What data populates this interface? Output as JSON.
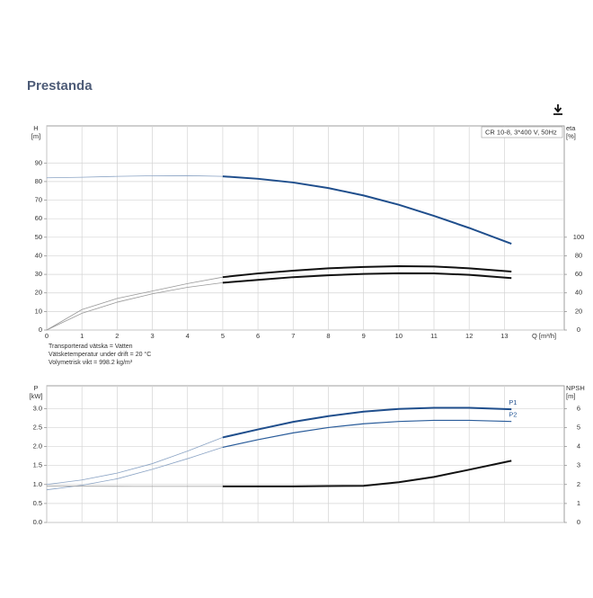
{
  "title": "Prestanda",
  "chart_data": [
    {
      "type": "line",
      "ylabel": [
        "H",
        "[m]"
      ],
      "y2label": [
        "eta",
        "[%]"
      ],
      "xlabel": "Q [m³/h]",
      "annotation": "CR 10-8, 3*400 V, 50Hz",
      "xlim": [
        0,
        14.7
      ],
      "xticks": [
        0,
        1,
        2,
        3,
        4,
        5,
        6,
        7,
        8,
        9,
        10,
        11,
        12,
        13
      ],
      "xtick_labels": true,
      "ylim": [
        0,
        110
      ],
      "yticks": [
        0,
        10,
        20,
        30,
        40,
        50,
        60,
        70,
        80,
        90
      ],
      "y2lim": [
        0,
        220
      ],
      "y2ticks": [
        0,
        20,
        40,
        60,
        80,
        100
      ],
      "grid": true,
      "series": [
        {
          "color": "#8aa3c4",
          "width": 0.8,
          "x": [
            0,
            1,
            2,
            3,
            4,
            5
          ],
          "values": [
            82,
            82.3,
            82.8,
            83.1,
            83.2,
            82.8
          ]
        },
        {
          "color": "#1f4e8c",
          "width": 2,
          "x": [
            5,
            6,
            7,
            8,
            9,
            10,
            11,
            12,
            13.2
          ],
          "values": [
            82.8,
            81.5,
            79.5,
            76.5,
            72.5,
            67.5,
            61.5,
            55,
            46.5
          ]
        },
        {
          "color": "#999999",
          "width": 0.8,
          "axis": "y2",
          "x": [
            0,
            1,
            2,
            3,
            4,
            5
          ],
          "values": [
            0,
            22,
            34,
            42,
            50,
            57
          ]
        },
        {
          "color": "#111111",
          "width": 2,
          "axis": "y2",
          "x": [
            5,
            6,
            7,
            8,
            9,
            10,
            11,
            12,
            13.2
          ],
          "values": [
            57,
            61,
            64,
            66.5,
            68,
            68.8,
            68.5,
            66.5,
            63
          ]
        },
        {
          "color": "#999999",
          "width": 0.8,
          "axis": "y2",
          "x": [
            0,
            1,
            2,
            3,
            4,
            5
          ],
          "values": [
            0,
            18,
            30,
            39,
            46,
            51
          ]
        },
        {
          "color": "#111111",
          "width": 2,
          "axis": "y2",
          "x": [
            5,
            6,
            7,
            8,
            9,
            10,
            11,
            12,
            13.2
          ],
          "values": [
            51,
            54,
            57,
            59,
            60.5,
            61.2,
            61,
            59.5,
            56
          ]
        }
      ],
      "notes": [
        "Transporterad vätska = Vatten",
        "Vätsketemperatur under drift = 20 °C",
        "Volymetrisk vikt = 998.2 kg/m³"
      ]
    },
    {
      "type": "line",
      "ylabel": [
        "P",
        "[kW]"
      ],
      "y2label": [
        "NPSH",
        "[m]"
      ],
      "xlim": [
        0,
        14.7
      ],
      "xticks": [
        0,
        1,
        2,
        3,
        4,
        5,
        6,
        7,
        8,
        9,
        10,
        11,
        12,
        13
      ],
      "xtick_labels": false,
      "ylim": [
        0,
        3.6
      ],
      "yticks": [
        {
          "value": 0,
          "label": "0.0"
        },
        0.5,
        {
          "value": 1,
          "label": "1.0"
        },
        1.5,
        {
          "value": 2,
          "label": "2.0"
        },
        2.5,
        {
          "value": 3,
          "label": "3.0"
        }
      ],
      "y2lim": [
        0,
        7.2
      ],
      "y2ticks": [
        0,
        1,
        2,
        3,
        4,
        5,
        6
      ],
      "grid": true,
      "series": [
        {
          "color": "#8aa3c4",
          "width": 0.8,
          "x": [
            0,
            1,
            2,
            3,
            4,
            5
          ],
          "values": [
            1.0,
            1.12,
            1.3,
            1.55,
            1.88,
            2.24
          ]
        },
        {
          "name": "P1",
          "color": "#1f4e8c",
          "width": 2,
          "x": [
            5,
            6,
            7,
            8,
            9,
            10,
            11,
            12,
            13.2
          ],
          "values": [
            2.24,
            2.45,
            2.65,
            2.8,
            2.92,
            2.99,
            3.02,
            3.02,
            2.98
          ]
        },
        {
          "color": "#8aa3c4",
          "width": 0.8,
          "x": [
            0,
            1,
            2,
            3,
            4,
            5
          ],
          "values": [
            0.86,
            0.98,
            1.15,
            1.4,
            1.68,
            1.98
          ]
        },
        {
          "name": "P2",
          "color": "#2a5c9a",
          "width": 1.2,
          "x": [
            5,
            6,
            7,
            8,
            9,
            10,
            11,
            12,
            13.2
          ],
          "values": [
            1.98,
            2.18,
            2.36,
            2.5,
            2.6,
            2.66,
            2.69,
            2.69,
            2.66
          ]
        },
        {
          "color": "#999999",
          "width": 0.8,
          "axis": "y2",
          "x": [
            0,
            2.5,
            5
          ],
          "values": [
            1.92,
            1.9,
            1.9
          ]
        },
        {
          "color": "#111111",
          "width": 2,
          "axis": "y2",
          "x": [
            5,
            6,
            7,
            8,
            9,
            10,
            11,
            12,
            13.2
          ],
          "values": [
            1.9,
            1.9,
            1.9,
            1.92,
            1.93,
            2.12,
            2.4,
            2.78,
            3.25
          ]
        }
      ]
    }
  ]
}
